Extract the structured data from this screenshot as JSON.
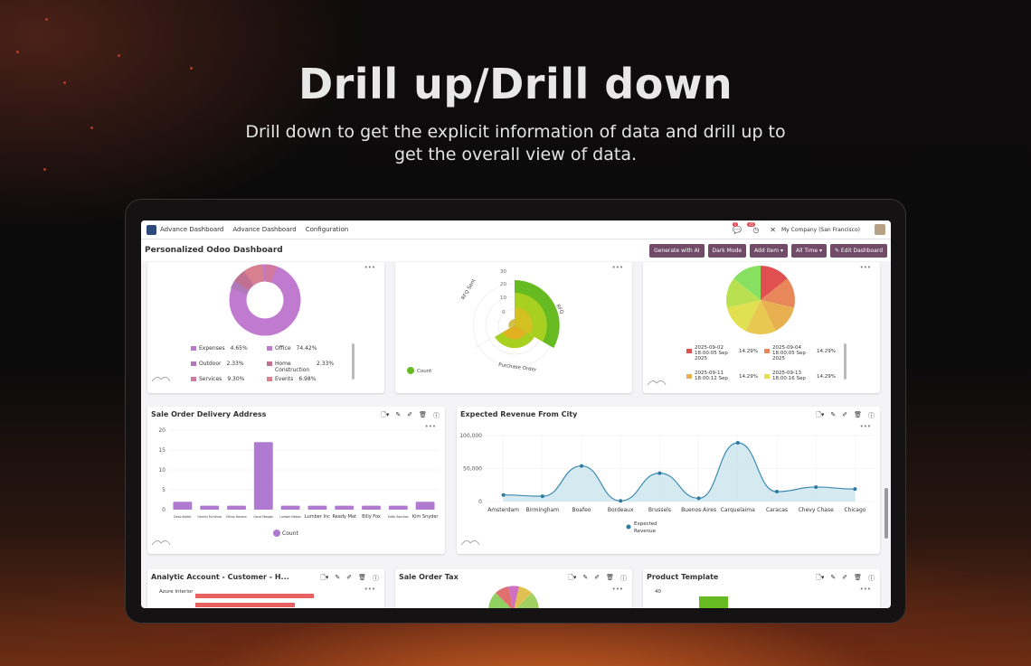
{
  "hero": {
    "title": "Drill up/Drill down",
    "subtitle": "Drill down to get the explicit information of data and drill up to get the overall view of data."
  },
  "topbar": {
    "app_name": "Advance Dashboard",
    "menu": [
      "Advance Dashboard",
      "Configuration"
    ],
    "company": "My Company (San Francisco)",
    "msg_badge": "1",
    "activity_badge": "45"
  },
  "dashboard": {
    "title": "Personalized Odoo Dashboard",
    "buttons": {
      "ai": "Generate with AI",
      "dark": "Dark Mode",
      "add": "Add item",
      "time": "All Time",
      "edit": "Edit Dashboard"
    }
  },
  "colors": {
    "accent": "#714b67",
    "purple": "#b57ad0",
    "teal": "#4a8fb0",
    "green": "#66bb22"
  },
  "donut": {
    "legend": [
      {
        "label": "Expenses",
        "value": "4.65%",
        "color": "#b57ad0"
      },
      {
        "label": "Office",
        "value": "74.42%",
        "color": "#c07ad0"
      },
      {
        "label": "Outdoor",
        "value": "2.33%",
        "color": "#b07ab8"
      },
      {
        "label": "Home Construction",
        "value": "2.33%",
        "color": "#c07090"
      },
      {
        "label": "Services",
        "value": "9.30%",
        "color": "#d07aa0"
      },
      {
        "label": "Events",
        "value": "6.98%",
        "color": "#d88090"
      }
    ]
  },
  "polar": {
    "labels": [
      "RFQ Sent",
      "RFQ",
      "Purchase Order"
    ],
    "ticks": [
      "30",
      "20",
      "10",
      "0"
    ],
    "legend": "Count"
  },
  "pie": {
    "legend": [
      {
        "label": "2025-09-02 18:00:05 Sep 2025",
        "value": "14.29%",
        "color": "#e05050"
      },
      {
        "label": "2025-09-04 18:00:05 Sep 2025",
        "value": "14.29%",
        "color": "#e8885a"
      },
      {
        "label": "2025-09-11 18:00:12 Sep",
        "value": "14.29%",
        "color": "#e8b050"
      },
      {
        "label": "2025-09-13 18:00:16 Sep",
        "value": "14.29%",
        "color": "#e0e050"
      }
    ]
  },
  "sale_delivery": {
    "title": "Sale Order Delivery Address",
    "legend": "Count",
    "chart_data": {
      "type": "bar",
      "categories": [
        "Deco Addict",
        "Gemini Furniture",
        "Eltron Havens",
        "Oscar Morgan",
        "Lumber Nation",
        "Lumber Inc",
        "Ready Mat",
        "Billy Fox",
        "Edith Sanchez",
        "Kim Snyder"
      ],
      "values": [
        2,
        1,
        1,
        17,
        1,
        1,
        1,
        1,
        1,
        2
      ],
      "ylim": [
        0,
        20
      ],
      "yticks": [
        "20",
        "15",
        "10",
        "5",
        "0"
      ]
    }
  },
  "revenue_city": {
    "title": "Expected Revenue From City",
    "legend": "Expected Revenue",
    "chart_data": {
      "type": "area",
      "categories": [
        "Amsterdam",
        "Birmingham",
        "Boafeo",
        "Bordeaux",
        "Brussels",
        "Buenos Aires",
        "Carquelaima",
        "Caracas",
        "Chevy Chase",
        "Chicago"
      ],
      "values": [
        10000,
        8000,
        54000,
        1000,
        43000,
        5000,
        89000,
        15000,
        22000,
        19000
      ],
      "ylim": [
        0,
        100000
      ],
      "yticks": [
        "100,000",
        "50,000",
        "0"
      ]
    }
  },
  "analytic": {
    "title": "Analytic Account - Customer - H...",
    "row_label": "Azure Interior"
  },
  "sale_tax": {
    "title": "Sale Order Tax"
  },
  "product_template": {
    "title": "Product Template",
    "ytick": "40"
  }
}
